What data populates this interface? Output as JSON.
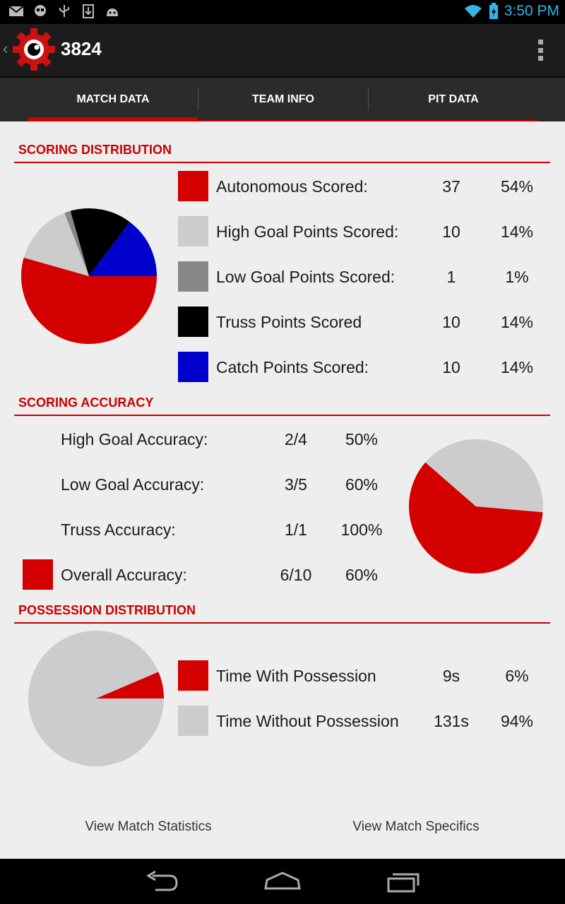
{
  "status_bar": {
    "time": "3:50 PM"
  },
  "action_bar": {
    "title": "3824"
  },
  "tabs": [
    {
      "label": "MATCH DATA"
    },
    {
      "label": "TEAM INFO"
    },
    {
      "label": "PIT DATA"
    }
  ],
  "sections": {
    "scoring_distribution": {
      "title": "SCORING DISTRIBUTION",
      "rows": [
        {
          "label": "Autonomous Scored:",
          "count": "37",
          "percent": "54%",
          "color": "#d40000"
        },
        {
          "label": "High Goal Points Scored:",
          "count": "10",
          "percent": "14%",
          "color": "#cccccc"
        },
        {
          "label": "Low Goal Points Scored:",
          "count": "1",
          "percent": "1%",
          "color": "#888888"
        },
        {
          "label": "Truss Points Scored",
          "count": "10",
          "percent": "14%",
          "color": "#000000"
        },
        {
          "label": "Catch Points Scored:",
          "count": "10",
          "percent": "14%",
          "color": "#0000cc"
        }
      ]
    },
    "scoring_accuracy": {
      "title": "SCORING ACCURACY",
      "rows": [
        {
          "label": "High Goal Accuracy:",
          "ratio": "2/4",
          "percent": "50%"
        },
        {
          "label": "Low Goal Accuracy:",
          "ratio": "3/5",
          "percent": "60%"
        },
        {
          "label": "Truss Accuracy:",
          "ratio": "1/1",
          "percent": "100%"
        },
        {
          "label": "Overall Accuracy:",
          "ratio": "6/10",
          "percent": "60%",
          "color": "#d40000"
        }
      ]
    },
    "possession_distribution": {
      "title": "POSSESSION DISTRIBUTION",
      "rows": [
        {
          "label": "Time With Possession",
          "time": "9s",
          "percent": "6%",
          "color": "#d40000"
        },
        {
          "label": "Time Without Possession",
          "time": "131s",
          "percent": "94%",
          "color": "#cccccc"
        }
      ]
    }
  },
  "chart_data": [
    {
      "type": "pie",
      "slices": [
        {
          "value": 37,
          "color": "#d40000"
        },
        {
          "value": 10,
          "color": "#cccccc"
        },
        {
          "value": 1,
          "color": "#888888"
        },
        {
          "value": 10,
          "color": "#000000"
        },
        {
          "value": 10,
          "color": "#0000cc"
        }
      ]
    },
    {
      "type": "pie",
      "slices": [
        {
          "value": 6,
          "color": "#d40000"
        },
        {
          "value": 4,
          "color": "#cccccc"
        }
      ]
    },
    {
      "type": "pie",
      "slices": [
        {
          "value": 9,
          "color": "#d40000"
        },
        {
          "value": 131,
          "color": "#cccccc"
        }
      ]
    }
  ],
  "footer": {
    "left_label": "View Match Statistics",
    "right_label": "View Match Specifics"
  }
}
